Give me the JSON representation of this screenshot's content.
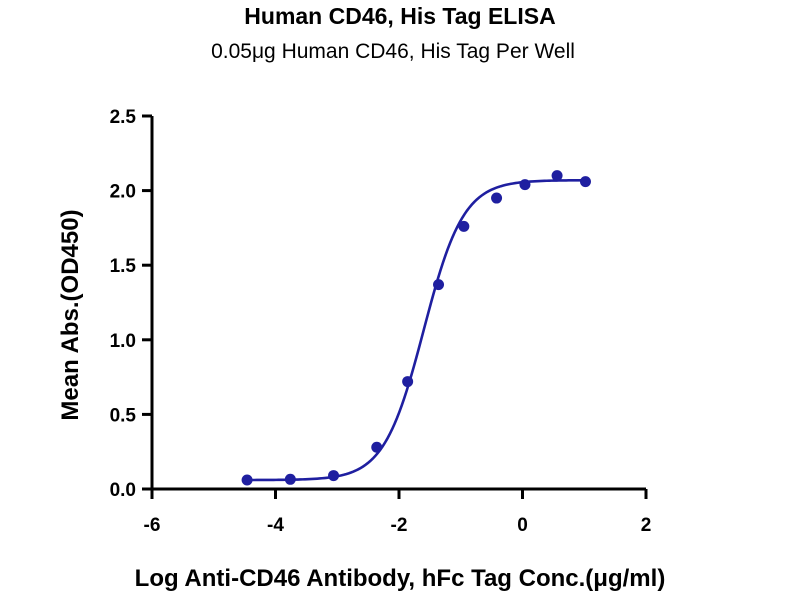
{
  "chart_data": {
    "type": "line",
    "title": "Human CD46, His Tag ELISA",
    "subtitle": "0.05μg Human CD46, His Tag Per Well",
    "xlabel": "Log Anti-CD46 Antibody, hFc Tag Conc.(μg/ml)",
    "ylabel": "Mean Abs.(OD450)",
    "xlim": [
      -6,
      2
    ],
    "ylim": [
      0,
      2.5
    ],
    "xticks": [
      "-6",
      "-4",
      "-2",
      "0",
      "2"
    ],
    "yticks": [
      "0.0",
      "0.5",
      "1.0",
      "1.5",
      "2.0",
      "2.5"
    ],
    "grid": false,
    "series": [
      {
        "points": [
          {
            "x": -4.46,
            "y": 0.06
          },
          {
            "x": -3.76,
            "y": 0.065
          },
          {
            "x": -3.06,
            "y": 0.09
          },
          {
            "x": -2.36,
            "y": 0.28
          },
          {
            "x": -1.86,
            "y": 0.72
          },
          {
            "x": -1.36,
            "y": 1.37
          },
          {
            "x": -0.95,
            "y": 1.76
          },
          {
            "x": -0.42,
            "y": 1.95
          },
          {
            "x": 0.04,
            "y": 2.04
          },
          {
            "x": 0.56,
            "y": 2.1
          },
          {
            "x": 1.02,
            "y": 2.06
          }
        ],
        "fit": {
          "bottom": 0.06,
          "top": 2.07,
          "logEC50": -1.6,
          "hill": 1.35
        }
      }
    ],
    "colors": {
      "series": "#1f1fa0",
      "axis": "#000000"
    }
  }
}
